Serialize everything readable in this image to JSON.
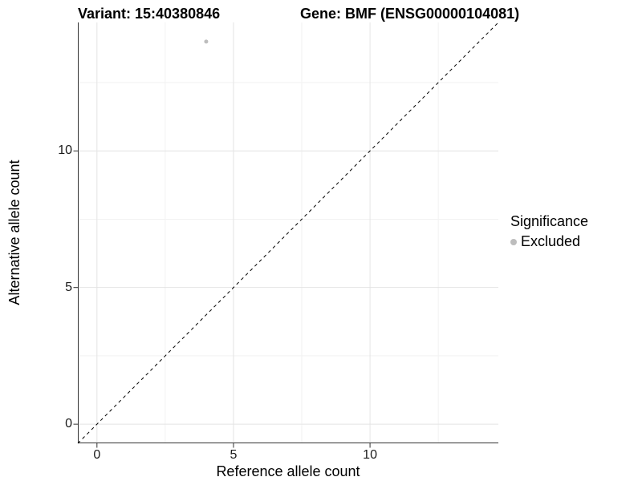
{
  "titles": {
    "left": "Variant: 15:40380846",
    "right": "Gene: BMF (ENSG00000104081)"
  },
  "chart_data": {
    "type": "scatter",
    "title_left": "Variant: 15:40380846",
    "title_right": "Gene: BMF (ENSG00000104081)",
    "xlabel": "Reference allele count",
    "ylabel": "Alternative allele count",
    "xlim": [
      -0.7,
      14.7
    ],
    "ylim": [
      -0.7,
      14.7
    ],
    "x_major_ticks": [
      0,
      5,
      10
    ],
    "y_major_ticks": [
      0,
      5,
      10
    ],
    "x_minor_ticks": [
      2.5,
      7.5,
      12.5
    ],
    "y_minor_ticks": [
      2.5,
      7.5,
      12.5
    ],
    "grid": true,
    "legend_position": "right",
    "reference_line": {
      "kind": "identity",
      "from": [
        -0.7,
        -0.7
      ],
      "to": [
        14.7,
        14.7
      ],
      "style": "dashed",
      "color": "#000000"
    },
    "series": [
      {
        "name": "Excluded",
        "color": "#bdbdbd",
        "points": [
          {
            "x": 4,
            "y": 14
          }
        ]
      }
    ],
    "legend": {
      "title": "Significance",
      "entries": [
        {
          "label": "Excluded",
          "color": "#bdbdbd"
        }
      ]
    },
    "style": {
      "grid_major_color": "#e4e4e4",
      "grid_minor_color": "#f2f2f2",
      "axis_line_color": "#333333",
      "tick_color": "#333333",
      "text_color": "#000000",
      "point_radius": 2.5
    }
  }
}
